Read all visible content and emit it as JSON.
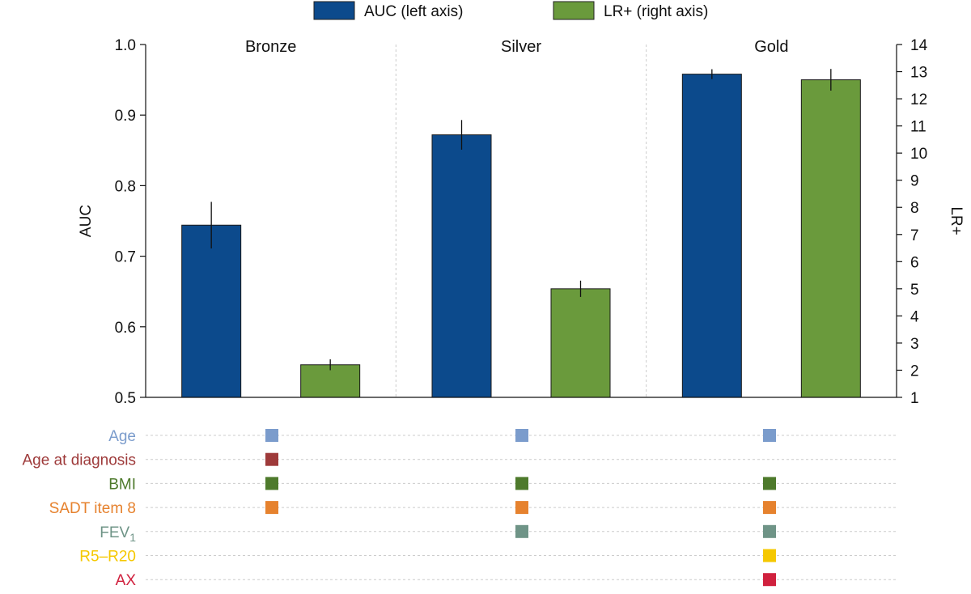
{
  "chart_data": {
    "type": "bar",
    "categories": [
      "Bronze",
      "Silver",
      "Gold"
    ],
    "series": [
      {
        "name": "AUC (left axis)",
        "axis": "left",
        "color": "#0c4a8c",
        "values": [
          0.744,
          0.872,
          0.958
        ],
        "errors": [
          0.033,
          0.021,
          0.007
        ]
      },
      {
        "name": "LR+ (right axis)",
        "axis": "right",
        "color": "#6a9a3c",
        "values": [
          2.2,
          5.0,
          12.7
        ],
        "errors": [
          0.2,
          0.3,
          0.4
        ]
      }
    ],
    "ylabel_left": "AUC",
    "ylabel_right": "LR+",
    "ylim_left": [
      0.5,
      1.0
    ],
    "ylim_right": [
      1,
      14
    ],
    "yticks_left": [
      "0.5",
      "0.6",
      "0.7",
      "0.8",
      "0.9",
      "1.0"
    ],
    "yticks_right": [
      "1",
      "2",
      "3",
      "4",
      "5",
      "6",
      "7",
      "8",
      "9",
      "10",
      "11",
      "12",
      "13",
      "14"
    ],
    "legend_position": "top-center"
  },
  "features": {
    "rows": [
      {
        "label": "Age",
        "sub": "",
        "color": "#7b9ccc",
        "included": [
          true,
          true,
          true
        ]
      },
      {
        "label": "Age at diagnosis",
        "sub": "",
        "color": "#9e3a3a",
        "included": [
          true,
          false,
          false
        ]
      },
      {
        "label": "BMI",
        "sub": "",
        "color": "#4e7a2c",
        "included": [
          true,
          true,
          true
        ]
      },
      {
        "label": "SADT item 8",
        "sub": "",
        "color": "#e6822e",
        "included": [
          true,
          true,
          true
        ]
      },
      {
        "label": "FEV",
        "sub": "1",
        "color": "#6f9487",
        "included": [
          false,
          true,
          true
        ]
      },
      {
        "label": "R5–R20",
        "sub": "",
        "color": "#f5c800",
        "included": [
          false,
          false,
          true
        ]
      },
      {
        "label": "AX",
        "sub": "",
        "color": "#d0213e",
        "included": [
          false,
          false,
          true
        ]
      }
    ]
  }
}
